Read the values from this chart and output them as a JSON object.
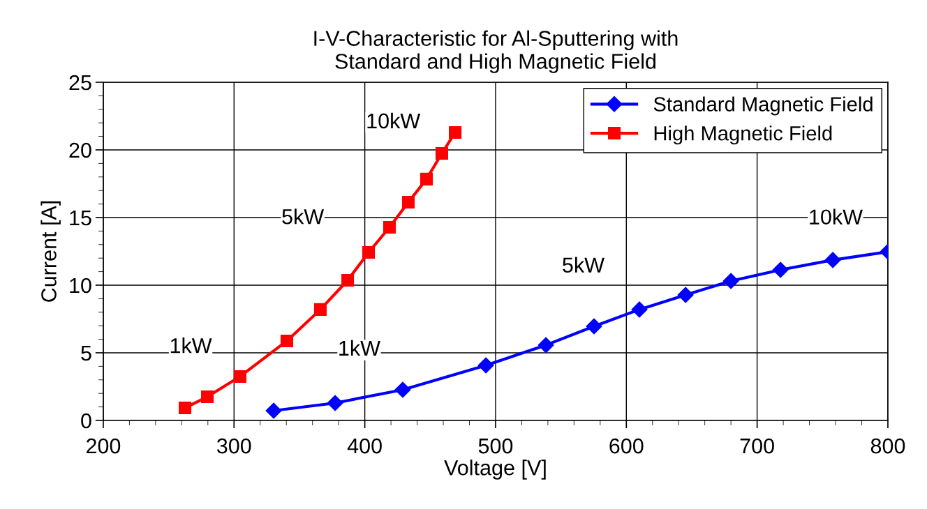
{
  "chart_data": {
    "type": "line",
    "title": "I-V-Characteristic for Al-Sputtering with\nStandard and High Magnetic Field",
    "xlabel": "Voltage [V]",
    "ylabel": "Current [A]",
    "xlim": [
      200,
      800
    ],
    "xticks": [
      200,
      300,
      400,
      500,
      600,
      700,
      800
    ],
    "ylim": [
      0,
      25
    ],
    "yticks": [
      0,
      5,
      10,
      15,
      20,
      25
    ],
    "grid": true,
    "legend": "top right",
    "line_style": "solid",
    "series": [
      {
        "name": "Standard Magnetic Field",
        "color": "#0000ff",
        "marker": "diamond",
        "x": [
          330.3,
          377.3,
          429,
          492.6,
          538.5,
          575.3,
          610,
          645.3,
          680,
          717.9,
          757.9,
          800
        ],
        "values": [
          0.72,
          1.29,
          2.27,
          4.07,
          5.57,
          6.96,
          8.2,
          9.28,
          10.31,
          11.13,
          11.86,
          12.47
        ]
      },
      {
        "name": "High Magnetic Field",
        "color": "#ff0000",
        "marker": "square",
        "x": [
          262.5,
          279.6,
          304.6,
          340.4,
          366,
          386.9,
          402.9,
          418.9,
          433.3,
          447.2,
          458.9,
          469.1
        ],
        "values": [
          0.93,
          1.75,
          3.25,
          5.88,
          8.2,
          10.36,
          12.42,
          14.28,
          16.13,
          17.84,
          19.74,
          21.29
        ]
      }
    ],
    "annotations": [
      {
        "text": "1kW",
        "x": 304.6,
        "y": 3.25
      },
      {
        "text": "5kW",
        "x": 402.9,
        "y": 12.42
      },
      {
        "text": "10kW",
        "x": 469.1,
        "y": 21.29
      },
      {
        "text": "1kW",
        "x": 429,
        "y": 2.27
      },
      {
        "text": "5kW",
        "x": 610,
        "y": 8.2
      },
      {
        "text": "10kW",
        "x": 800,
        "y": 12.47
      }
    ]
  }
}
